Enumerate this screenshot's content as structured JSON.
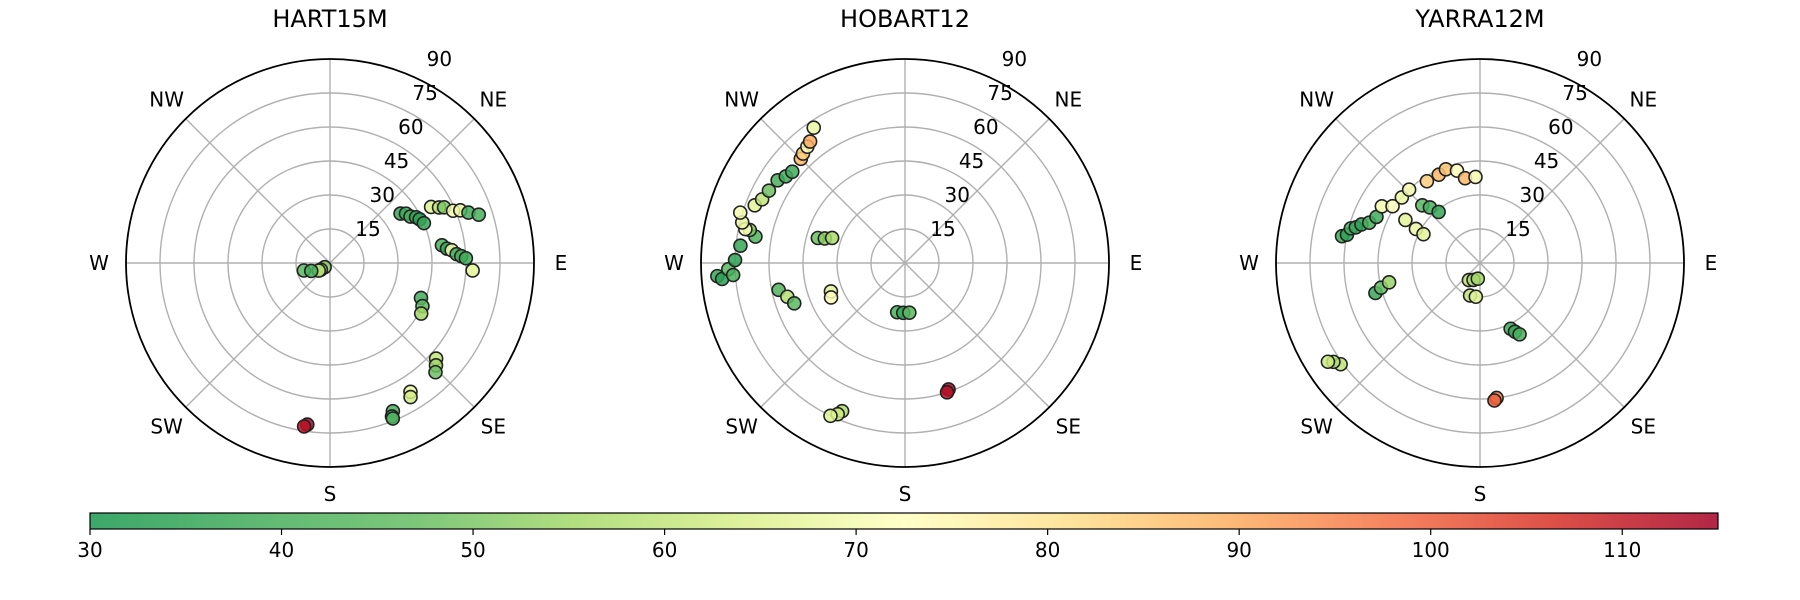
{
  "chart_data": {
    "type": "scatter",
    "projection": "polar",
    "angle_direction": "clockwise-from-north",
    "radius_meaning": "90 at centre, 0 at rim",
    "rmax": 90,
    "radial_ticks": [
      "15",
      "30",
      "45",
      "60",
      "75",
      "90"
    ],
    "direction_labels": [
      "NE",
      "E",
      "SE",
      "S",
      "SW",
      "W",
      "NW"
    ],
    "colorbar": {
      "cmap": "RdYlGn_r",
      "min": 30,
      "max": 115,
      "ticks": [
        "30",
        "40",
        "50",
        "60",
        "70",
        "80",
        "90",
        "100",
        "110"
      ]
    },
    "panels": [
      {
        "title": "HART15M",
        "points": [
          {
            "az": 232,
            "el": 87,
            "c": 52
          },
          {
            "az": 234,
            "el": 85,
            "c": 55
          },
          {
            "az": 236,
            "el": 84,
            "c": 58
          },
          {
            "az": 254,
            "el": 78,
            "c": 44
          },
          {
            "az": 247,
            "el": 81,
            "c": 40
          },
          {
            "az": 55,
            "el": 52,
            "c": 36
          },
          {
            "az": 57,
            "el": 50,
            "c": 38
          },
          {
            "az": 60,
            "el": 49,
            "c": 40
          },
          {
            "az": 62,
            "el": 47,
            "c": 36
          },
          {
            "az": 64,
            "el": 46,
            "c": 34
          },
          {
            "az": 67,
            "el": 45,
            "c": 36
          },
          {
            "az": 61,
            "el": 39,
            "c": 65
          },
          {
            "az": 63,
            "el": 36,
            "c": 60
          },
          {
            "az": 64,
            "el": 34,
            "c": 50
          },
          {
            "az": 67,
            "el": 31,
            "c": 70
          },
          {
            "az": 68,
            "el": 28,
            "c": 68
          },
          {
            "az": 70,
            "el": 25,
            "c": 38
          },
          {
            "az": 72,
            "el": 21,
            "c": 40
          },
          {
            "az": 81,
            "el": 40,
            "c": 40
          },
          {
            "az": 83,
            "el": 38,
            "c": 36
          },
          {
            "az": 84,
            "el": 36,
            "c": 70
          },
          {
            "az": 86,
            "el": 34,
            "c": 38
          },
          {
            "az": 87,
            "el": 32,
            "c": 40
          },
          {
            "az": 88,
            "el": 30,
            "c": 38
          },
          {
            "az": 93,
            "el": 27,
            "c": 66
          },
          {
            "az": 111,
            "el": 47,
            "c": 38
          },
          {
            "az": 115,
            "el": 45,
            "c": 45
          },
          {
            "az": 119,
            "el": 44,
            "c": 55
          },
          {
            "az": 132,
            "el": 27,
            "c": 60
          },
          {
            "az": 134,
            "el": 25,
            "c": 55
          },
          {
            "az": 136,
            "el": 23,
            "c": 48
          },
          {
            "az": 148,
            "el": 23,
            "c": 68
          },
          {
            "az": 149,
            "el": 21,
            "c": 63
          },
          {
            "az": 157,
            "el": 19,
            "c": 40
          },
          {
            "az": 158,
            "el": 17,
            "c": 38
          },
          {
            "az": 158,
            "el": 16,
            "c": 42
          },
          {
            "az": 188,
            "el": 18,
            "c": 114
          },
          {
            "az": 189,
            "el": 17,
            "c": 112
          }
        ]
      },
      {
        "title": "HOBART12",
        "points": [
          {
            "az": 280,
            "el": 23,
            "c": 42
          },
          {
            "az": 282,
            "el": 20,
            "c": 50
          },
          {
            "az": 282,
            "el": 18,
            "c": 72
          },
          {
            "az": 284,
            "el": 16,
            "c": 68
          },
          {
            "az": 287,
            "el": 14,
            "c": 70
          },
          {
            "az": 266,
            "el": 7,
            "c": 36
          },
          {
            "az": 265,
            "el": 9,
            "c": 34
          },
          {
            "az": 268,
            "el": 12,
            "c": 44
          },
          {
            "az": 266,
            "el": 14,
            "c": 40
          },
          {
            "az": 271,
            "el": 15,
            "c": 34
          },
          {
            "az": 276,
            "el": 17,
            "c": 36
          },
          {
            "az": 291,
            "el": 19,
            "c": 66
          },
          {
            "az": 294,
            "el": 21,
            "c": 60
          },
          {
            "az": 298,
            "el": 22,
            "c": 48
          },
          {
            "az": 303,
            "el": 23,
            "c": 40
          },
          {
            "az": 306,
            "el": 25,
            "c": 38
          },
          {
            "az": 309,
            "el": 26,
            "c": 38
          },
          {
            "az": 315,
            "el": 25,
            "c": 88
          },
          {
            "az": 317,
            "el": 24,
            "c": 84
          },
          {
            "az": 320,
            "el": 23,
            "c": 72
          },
          {
            "az": 322,
            "el": 22,
            "c": 90
          },
          {
            "az": 326,
            "el": 18,
            "c": 68
          },
          {
            "az": 258,
            "el": 33,
            "c": 42
          },
          {
            "az": 254,
            "el": 36,
            "c": 58
          },
          {
            "az": 250,
            "el": 38,
            "c": 44
          },
          {
            "az": 286,
            "el": 50,
            "c": 48
          },
          {
            "az": 287,
            "el": 53,
            "c": 52
          },
          {
            "az": 289,
            "el": 56,
            "c": 56
          },
          {
            "az": 249,
            "el": 55,
            "c": 66
          },
          {
            "az": 245,
            "el": 54,
            "c": 72
          },
          {
            "az": 203,
            "el": 19,
            "c": 57
          },
          {
            "az": 204,
            "el": 17,
            "c": 62
          },
          {
            "az": 206,
            "el": 15,
            "c": 65
          },
          {
            "az": 189,
            "el": 68,
            "c": 40
          },
          {
            "az": 182,
            "el": 68,
            "c": 36
          },
          {
            "az": 175,
            "el": 68,
            "c": 44
          },
          {
            "az": 161,
            "el": 31,
            "c": 114
          },
          {
            "az": 162,
            "el": 30,
            "c": 112
          }
        ]
      },
      {
        "title": "YARRA12M",
        "points": [
          {
            "az": 281,
            "el": 28,
            "c": 38
          },
          {
            "az": 282,
            "el": 30,
            "c": 34
          },
          {
            "az": 285,
            "el": 31,
            "c": 40
          },
          {
            "az": 286,
            "el": 33,
            "c": 36
          },
          {
            "az": 288,
            "el": 35,
            "c": 34
          },
          {
            "az": 290,
            "el": 38,
            "c": 40
          },
          {
            "az": 294,
            "el": 40,
            "c": 38
          },
          {
            "az": 300,
            "el": 40,
            "c": 70
          },
          {
            "az": 303,
            "el": 44,
            "c": 72
          },
          {
            "az": 310,
            "el": 45,
            "c": 68
          },
          {
            "az": 316,
            "el": 45,
            "c": 70
          },
          {
            "az": 315,
            "el": 54,
            "c": 44
          },
          {
            "az": 318,
            "el": 57,
            "c": 40
          },
          {
            "az": 321,
            "el": 61,
            "c": 36
          },
          {
            "az": 300,
            "el": 52,
            "c": 66
          },
          {
            "az": 298,
            "el": 58,
            "c": 68
          },
          {
            "az": 297,
            "el": 62,
            "c": 66
          },
          {
            "az": 327,
            "el": 47,
            "c": 84
          },
          {
            "az": 335,
            "el": 47,
            "c": 88
          },
          {
            "az": 340,
            "el": 46,
            "c": 86
          },
          {
            "az": 346,
            "el": 48,
            "c": 72
          },
          {
            "az": 350,
            "el": 52,
            "c": 88
          },
          {
            "az": 357,
            "el": 52,
            "c": 70
          },
          {
            "az": 254,
            "el": 42,
            "c": 36
          },
          {
            "az": 256,
            "el": 45,
            "c": 46
          },
          {
            "az": 258,
            "el": 49,
            "c": 54
          },
          {
            "az": 234,
            "el": 14,
            "c": 60
          },
          {
            "az": 236,
            "el": 12,
            "c": 56
          },
          {
            "az": 237,
            "el": 10,
            "c": 62
          },
          {
            "az": 213,
            "el": 81,
            "c": 60
          },
          {
            "az": 201,
            "el": 82,
            "c": 56
          },
          {
            "az": 188,
            "el": 83,
            "c": 55
          },
          {
            "az": 197,
            "el": 75,
            "c": 60
          },
          {
            "az": 187,
            "el": 75,
            "c": 66
          },
          {
            "az": 155,
            "el": 58,
            "c": 38
          },
          {
            "az": 153,
            "el": 56,
            "c": 36
          },
          {
            "az": 151,
            "el": 54,
            "c": 40
          },
          {
            "az": 173,
            "el": 30,
            "c": 95
          },
          {
            "az": 174,
            "el": 29,
            "c": 100
          }
        ]
      }
    ]
  }
}
